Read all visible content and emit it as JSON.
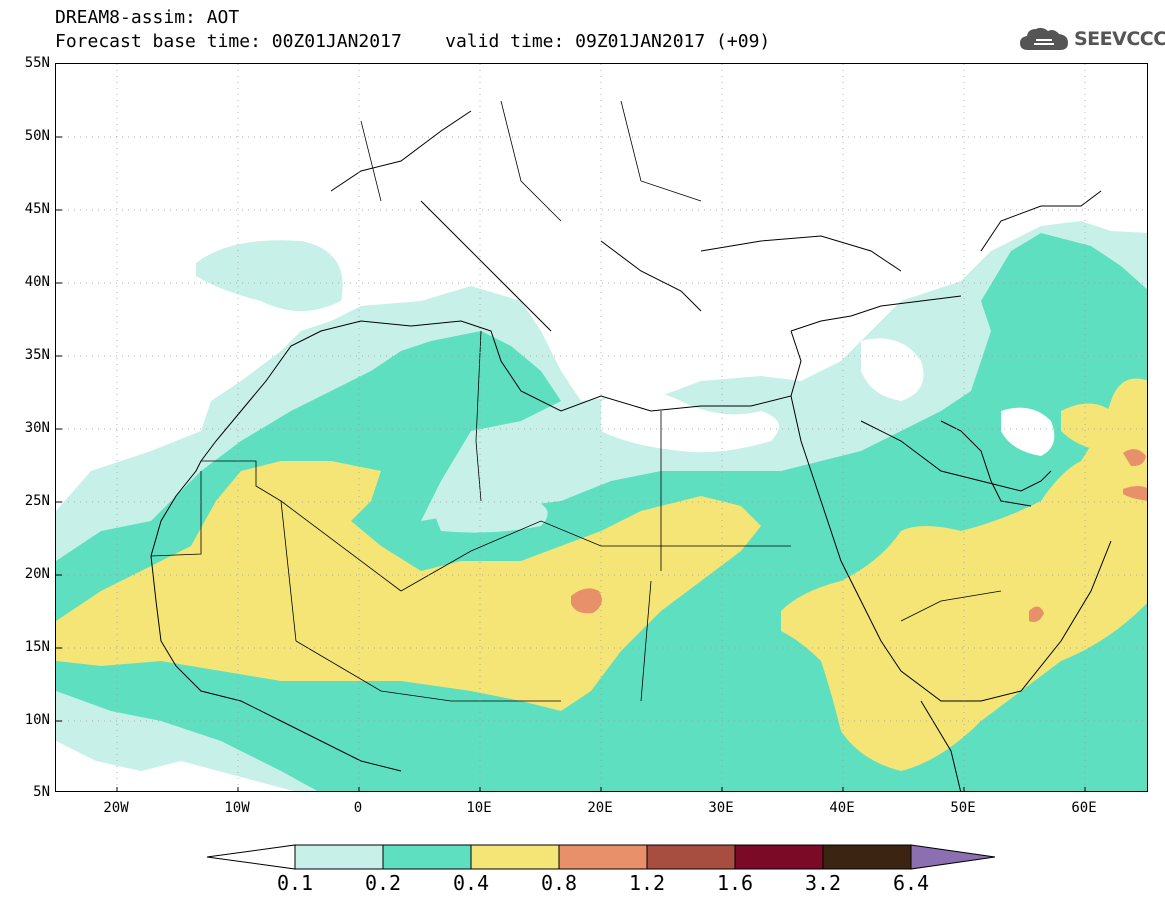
{
  "header": {
    "line1": "DREAM8-assim: AOT",
    "line2": "Forecast base time: 00Z01JAN2017    valid time: 09Z01JAN2017 (+09)"
  },
  "logo": {
    "text": "SEEVCCC",
    "icon": "cloud-icon"
  },
  "map": {
    "lat_labels": [
      "55N",
      "50N",
      "45N",
      "40N",
      "35N",
      "30N",
      "25N",
      "20N",
      "15N",
      "10N",
      "5N"
    ],
    "lon_labels": [
      "20W",
      "10W",
      "0",
      "10E",
      "20E",
      "30E",
      "40E",
      "50E",
      "60E"
    ],
    "lon_range": [
      -25,
      65
    ],
    "lat_range": [
      5,
      55
    ],
    "grid": true
  },
  "colorbar": {
    "labels": [
      "0.1",
      "0.2",
      "0.4",
      "0.8",
      "1.2",
      "1.6",
      "3.2",
      "6.4"
    ],
    "colors": {
      "below": "#ffffff",
      "c1": "#c6f0e8",
      "c2": "#5ee0c0",
      "c3": "#f5e577",
      "c4": "#e8906a",
      "c5": "#a84e40",
      "c6": "#7a0a26",
      "c7": "#3c2412",
      "above": "#8c6fb0"
    }
  }
}
